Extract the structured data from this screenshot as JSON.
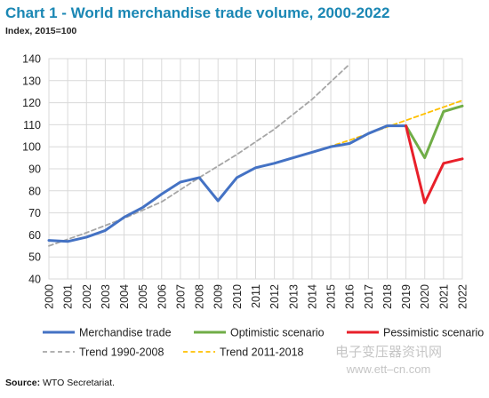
{
  "title": "Chart 1 - World merchandise trade volume, 2000-2022",
  "subtitle": "Index, 2015=100",
  "source_label": "Source:",
  "source_text": "WTO Secretariat.",
  "watermark": {
    "line1": "电子变压器资讯网",
    "line2": "www.ett–cn.com"
  },
  "colors": {
    "merchandise": "#4472c4",
    "optimistic": "#70ad47",
    "pessimistic": "#e8202a",
    "trend_1990_2008": "#a6a6a6",
    "trend_2011_2018": "#ffc000",
    "grid": "#d9d9d9"
  },
  "chart_data": {
    "type": "line",
    "x": [
      2000,
      2001,
      2002,
      2003,
      2004,
      2005,
      2006,
      2007,
      2008,
      2009,
      2010,
      2011,
      2012,
      2013,
      2014,
      2015,
      2016,
      2017,
      2018,
      2019,
      2020,
      2021,
      2022
    ],
    "xlim": [
      2000,
      2022
    ],
    "ylim": [
      40,
      140
    ],
    "yticks": [
      40,
      50,
      60,
      70,
      80,
      90,
      100,
      110,
      120,
      130,
      140
    ],
    "grid": true,
    "legend_position": "bottom",
    "series": [
      {
        "name": "Merchandise trade",
        "style": "solid",
        "color_key": "merchandise",
        "x": [
          2000,
          2001,
          2002,
          2003,
          2004,
          2005,
          2006,
          2007,
          2008,
          2009,
          2010,
          2011,
          2012,
          2013,
          2014,
          2015,
          2016,
          2017,
          2018,
          2019
        ],
        "y": [
          57.5,
          57,
          59,
          62,
          68,
          72.5,
          78.5,
          84,
          86,
          75.5,
          86,
          90.5,
          92.5,
          95,
          97.5,
          100,
          101.5,
          106,
          109.5,
          109.5
        ]
      },
      {
        "name": "Optimistic scenario",
        "style": "solid",
        "color_key": "optimistic",
        "x": [
          2019,
          2020,
          2021,
          2022
        ],
        "y": [
          109.5,
          95,
          116,
          118.5
        ]
      },
      {
        "name": "Pessimistic scenario",
        "style": "solid",
        "color_key": "pessimistic",
        "x": [
          2019,
          2020,
          2021,
          2022
        ],
        "y": [
          109.5,
          74.5,
          92.5,
          94.5
        ]
      },
      {
        "name": "Trend 1990-2008",
        "style": "dashed",
        "color_key": "trend_1990_2008",
        "x": [
          2000,
          2002,
          2004,
          2006,
          2008,
          2010,
          2012,
          2014,
          2016
        ],
        "y": [
          55,
          61,
          67.5,
          75,
          86,
          96.5,
          108,
          121.5,
          137.5
        ]
      },
      {
        "name": "Trend 2011-2018",
        "style": "dashed",
        "color_key": "trend_2011_2018",
        "x": [
          2011,
          2012,
          2014,
          2016,
          2018,
          2020,
          2022
        ],
        "y": [
          90.5,
          92.5,
          97.5,
          103,
          109,
          115,
          121
        ]
      }
    ]
  }
}
